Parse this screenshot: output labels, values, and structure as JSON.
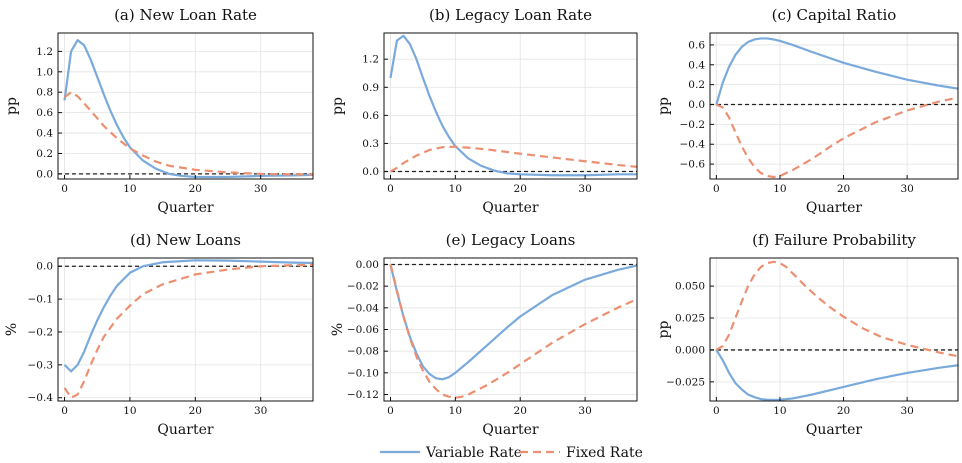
{
  "colors": {
    "variable": "#7aaadc",
    "fixed": "#ec9072",
    "zero_line": "#222222",
    "grid": "#e3e3e3"
  },
  "legend": [
    {
      "key": "variable",
      "label": "Variable Rate",
      "dash": "solid"
    },
    {
      "key": "fixed",
      "label": "Fixed Rate",
      "dash": "dashed"
    }
  ],
  "chart_data": [
    {
      "type": "line",
      "title": "(a) New Loan Rate",
      "xlabel": "Quarter",
      "ylabel": "pp",
      "xlim": [
        -1,
        38
      ],
      "ylim": [
        -0.05,
        1.38
      ],
      "xticks": [
        0,
        10,
        20,
        30
      ],
      "yticks": [
        0.0,
        0.2,
        0.4,
        0.6,
        0.8,
        1.0,
        1.2
      ],
      "ytick_labels": [
        "0.0",
        "0.2",
        "0.4",
        "0.6",
        "0.8",
        "1.0",
        "1.2"
      ],
      "zero_line": 0,
      "series": [
        {
          "name": "Variable Rate",
          "key": "variable",
          "x": [
            0,
            1,
            2,
            3,
            4,
            5,
            6,
            7,
            8,
            9,
            10,
            12,
            14,
            16,
            18,
            20,
            25,
            30,
            35,
            38
          ],
          "y": [
            0.72,
            1.2,
            1.31,
            1.26,
            1.12,
            0.95,
            0.78,
            0.62,
            0.48,
            0.36,
            0.26,
            0.13,
            0.05,
            0.0,
            -0.02,
            -0.03,
            -0.03,
            -0.02,
            -0.015,
            -0.01
          ]
        },
        {
          "name": "Fixed Rate",
          "key": "fixed",
          "x": [
            0,
            1,
            2,
            4,
            6,
            8,
            10,
            12,
            14,
            16,
            18,
            20,
            25,
            30,
            35,
            38
          ],
          "y": [
            0.75,
            0.8,
            0.76,
            0.62,
            0.47,
            0.35,
            0.25,
            0.18,
            0.12,
            0.08,
            0.06,
            0.04,
            0.015,
            0.0,
            -0.005,
            -0.005
          ]
        }
      ]
    },
    {
      "type": "line",
      "title": "(b) Legacy Loan Rate",
      "xlabel": "Quarter",
      "ylabel": "pp",
      "xlim": [
        -1,
        38
      ],
      "ylim": [
        -0.08,
        1.48
      ],
      "xticks": [
        0,
        10,
        20,
        30
      ],
      "yticks": [
        0.0,
        0.3,
        0.6,
        0.9,
        1.2
      ],
      "ytick_labels": [
        "0.0",
        "0.3",
        "0.6",
        "0.9",
        "1.2"
      ],
      "zero_line": 0,
      "series": [
        {
          "name": "Variable Rate",
          "key": "variable",
          "x": [
            0,
            1,
            2,
            3,
            4,
            5,
            6,
            7,
            8,
            9,
            10,
            12,
            14,
            16,
            18,
            20,
            25,
            30,
            35,
            38
          ],
          "y": [
            1.0,
            1.4,
            1.45,
            1.36,
            1.2,
            1.0,
            0.81,
            0.64,
            0.49,
            0.37,
            0.27,
            0.14,
            0.06,
            0.01,
            -0.02,
            -0.03,
            -0.04,
            -0.04,
            -0.03,
            -0.03
          ]
        },
        {
          "name": "Fixed Rate",
          "key": "fixed",
          "x": [
            0,
            1,
            2,
            4,
            6,
            8,
            10,
            12,
            15,
            20,
            25,
            30,
            35,
            38
          ],
          "y": [
            0.0,
            0.04,
            0.09,
            0.17,
            0.23,
            0.26,
            0.265,
            0.255,
            0.235,
            0.19,
            0.15,
            0.11,
            0.07,
            0.05
          ]
        }
      ]
    },
    {
      "type": "line",
      "title": "(c) Capital Ratio",
      "xlabel": "Quarter",
      "ylabel": "pp",
      "xlim": [
        -1,
        38
      ],
      "ylim": [
        -0.75,
        0.72
      ],
      "xticks": [
        0,
        10,
        20,
        30
      ],
      "yticks": [
        -0.6,
        -0.4,
        -0.2,
        0.0,
        0.2,
        0.4,
        0.6
      ],
      "ytick_labels": [
        "−0.6",
        "−0.4",
        "−0.2",
        "0.0",
        "0.2",
        "0.4",
        "0.6"
      ],
      "zero_line": 0,
      "series": [
        {
          "name": "Variable Rate",
          "key": "variable",
          "x": [
            0,
            1,
            2,
            3,
            4,
            5,
            6,
            7,
            8,
            9,
            10,
            12,
            15,
            20,
            25,
            30,
            35,
            38
          ],
          "y": [
            0.0,
            0.22,
            0.38,
            0.5,
            0.58,
            0.63,
            0.655,
            0.665,
            0.665,
            0.655,
            0.64,
            0.6,
            0.53,
            0.42,
            0.33,
            0.25,
            0.19,
            0.16
          ]
        },
        {
          "name": "Fixed Rate",
          "key": "fixed",
          "x": [
            0,
            1,
            2,
            3,
            4,
            5,
            6,
            7,
            8,
            9,
            10,
            12,
            15,
            18,
            20,
            25,
            30,
            35,
            38
          ],
          "y": [
            0.0,
            -0.03,
            -0.13,
            -0.28,
            -0.42,
            -0.54,
            -0.63,
            -0.69,
            -0.72,
            -0.73,
            -0.72,
            -0.66,
            -0.55,
            -0.42,
            -0.34,
            -0.18,
            -0.06,
            0.03,
            0.07
          ]
        }
      ]
    },
    {
      "type": "line",
      "title": "(d) New Loans",
      "xlabel": "Quarter",
      "ylabel": "%",
      "xlim": [
        -1,
        38
      ],
      "ylim": [
        -0.41,
        0.025
      ],
      "xticks": [
        0,
        10,
        20,
        30
      ],
      "yticks": [
        -0.4,
        -0.3,
        -0.2,
        -0.1,
        0.0
      ],
      "ytick_labels": [
        "−0.4",
        "−0.3",
        "−0.2",
        "−0.1",
        "0.0"
      ],
      "zero_line": 0,
      "series": [
        {
          "name": "Variable Rate",
          "key": "variable",
          "x": [
            0,
            1,
            2,
            3,
            4,
            5,
            6,
            7,
            8,
            10,
            12,
            15,
            20,
            25,
            30,
            35,
            38
          ],
          "y": [
            -0.3,
            -0.32,
            -0.3,
            -0.26,
            -0.21,
            -0.165,
            -0.125,
            -0.09,
            -0.06,
            -0.02,
            0.0,
            0.012,
            0.018,
            0.017,
            0.014,
            0.011,
            0.01
          ]
        },
        {
          "name": "Fixed Rate",
          "key": "fixed",
          "x": [
            0,
            1,
            2,
            3,
            4,
            5,
            6,
            8,
            10,
            12,
            15,
            20,
            25,
            30,
            35,
            38
          ],
          "y": [
            -0.37,
            -0.4,
            -0.39,
            -0.35,
            -0.3,
            -0.255,
            -0.215,
            -0.16,
            -0.12,
            -0.085,
            -0.055,
            -0.025,
            -0.01,
            0.0,
            0.003,
            0.004
          ]
        }
      ]
    },
    {
      "type": "line",
      "title": "(e) Legacy Loans",
      "xlabel": "Quarter",
      "ylabel": "%",
      "xlim": [
        -1,
        38
      ],
      "ylim": [
        -0.126,
        0.006
      ],
      "xticks": [
        0,
        10,
        20,
        30
      ],
      "yticks": [
        -0.12,
        -0.1,
        -0.08,
        -0.06,
        -0.04,
        -0.02,
        0.0
      ],
      "ytick_labels": [
        "−0.12",
        "−0.10",
        "−0.08",
        "−0.06",
        "−0.04",
        "−0.02",
        "0.00"
      ],
      "zero_line": 0,
      "series": [
        {
          "name": "Variable Rate",
          "key": "variable",
          "x": [
            0,
            1,
            2,
            3,
            4,
            5,
            6,
            7,
            8,
            9,
            10,
            12,
            15,
            18,
            20,
            25,
            30,
            35,
            38
          ],
          "y": [
            0.0,
            -0.025,
            -0.048,
            -0.067,
            -0.082,
            -0.094,
            -0.101,
            -0.105,
            -0.106,
            -0.104,
            -0.1,
            -0.09,
            -0.074,
            -0.058,
            -0.048,
            -0.028,
            -0.014,
            -0.005,
            -0.001
          ]
        },
        {
          "name": "Fixed Rate",
          "key": "fixed",
          "x": [
            0,
            1,
            2,
            3,
            4,
            5,
            6,
            7,
            8,
            9,
            10,
            11,
            12,
            15,
            18,
            20,
            25,
            30,
            35,
            38
          ],
          "y": [
            0.0,
            -0.024,
            -0.048,
            -0.068,
            -0.085,
            -0.098,
            -0.108,
            -0.115,
            -0.12,
            -0.122,
            -0.123,
            -0.122,
            -0.12,
            -0.111,
            -0.1,
            -0.092,
            -0.072,
            -0.055,
            -0.04,
            -0.032
          ]
        }
      ]
    },
    {
      "type": "line",
      "title": "(f) Failure Probability",
      "xlabel": "Quarter",
      "ylabel": "pp",
      "xlim": [
        -1,
        38
      ],
      "ylim": [
        -0.04,
        0.072
      ],
      "xticks": [
        0,
        10,
        20,
        30
      ],
      "yticks": [
        -0.025,
        0.0,
        0.025,
        0.05
      ],
      "ytick_labels": [
        "−0.025",
        "0.000",
        "0.025",
        "0.050"
      ],
      "zero_line": 0,
      "series": [
        {
          "name": "Variable Rate",
          "key": "variable",
          "x": [
            0,
            1,
            2,
            3,
            4,
            5,
            6,
            7,
            8,
            9,
            10,
            12,
            15,
            20,
            25,
            30,
            35,
            38
          ],
          "y": [
            0.0,
            -0.008,
            -0.018,
            -0.026,
            -0.031,
            -0.035,
            -0.037,
            -0.0385,
            -0.039,
            -0.0392,
            -0.039,
            -0.038,
            -0.035,
            -0.029,
            -0.023,
            -0.018,
            -0.014,
            -0.012
          ]
        },
        {
          "name": "Fixed Rate",
          "key": "fixed",
          "x": [
            0,
            1,
            2,
            3,
            4,
            5,
            6,
            7,
            8,
            9,
            10,
            11,
            12,
            14,
            16,
            18,
            20,
            23,
            26,
            30,
            35,
            38
          ],
          "y": [
            0.0,
            0.003,
            0.012,
            0.025,
            0.038,
            0.05,
            0.059,
            0.065,
            0.068,
            0.069,
            0.068,
            0.065,
            0.06,
            0.05,
            0.041,
            0.033,
            0.026,
            0.017,
            0.01,
            0.004,
            -0.002,
            -0.005
          ]
        }
      ]
    }
  ]
}
